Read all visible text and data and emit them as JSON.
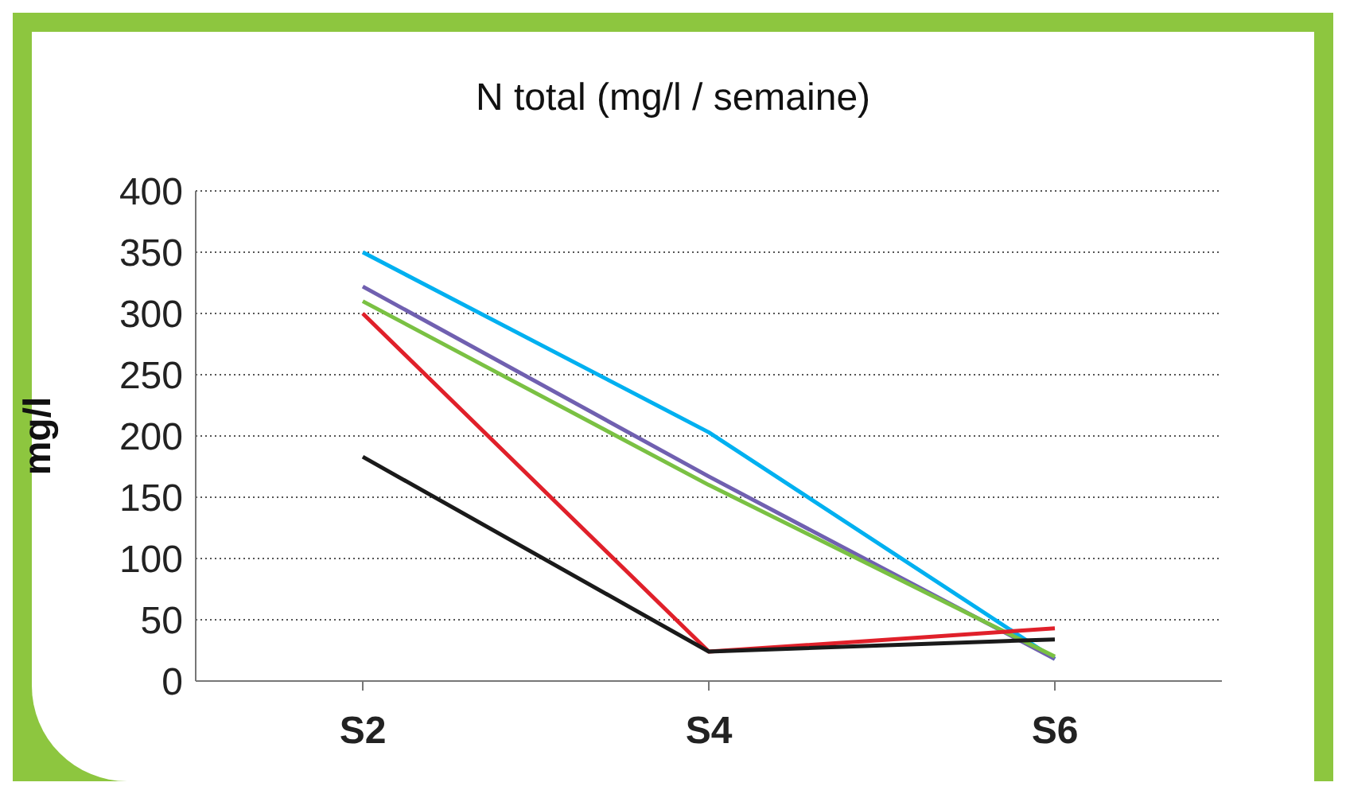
{
  "chart_data": {
    "type": "line",
    "title": "N total (mg/l / semaine)",
    "ylabel": "mg/l",
    "categories": [
      "S2",
      "S4",
      "S6"
    ],
    "series": [
      {
        "color": "#00b0f0",
        "values": [
          350,
          203,
          18
        ]
      },
      {
        "color": "#7060b0",
        "values": [
          322,
          167,
          18
        ]
      },
      {
        "color": "#7ac143",
        "values": [
          310,
          160,
          20
        ]
      },
      {
        "color": "#e0202a",
        "values": [
          300,
          24,
          43
        ]
      },
      {
        "color": "#1a1a1a",
        "values": [
          183,
          24,
          34
        ]
      }
    ],
    "ylim": [
      0,
      400
    ],
    "yticks": [
      0,
      50,
      100,
      150,
      200,
      250,
      300,
      350,
      400
    ],
    "grid": "y",
    "legend": false,
    "marker": "none",
    "line_style": "solid"
  }
}
